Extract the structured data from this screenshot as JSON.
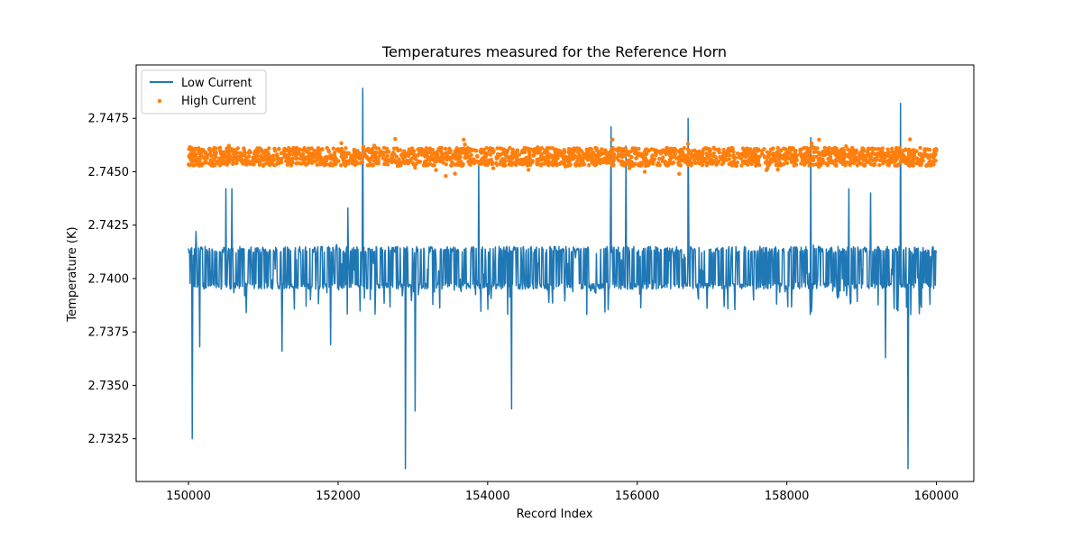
{
  "chart_data": {
    "type": "line",
    "title": "Temperatures measured for the Reference Horn",
    "xlabel": "Record Index",
    "ylabel": "Temperature (K)",
    "xlim": [
      149300,
      160500
    ],
    "ylim": [
      2.7305,
      2.75
    ],
    "xticks": [
      150000,
      152000,
      154000,
      156000,
      158000,
      160000
    ],
    "xtick_labels": [
      "150000",
      "152000",
      "154000",
      "156000",
      "158000",
      "160000"
    ],
    "yticks": [
      2.7325,
      2.735,
      2.7375,
      2.74,
      2.7425,
      2.745,
      2.7475
    ],
    "ytick_labels": [
      "2.7325",
      "2.7350",
      "2.7375",
      "2.7400",
      "2.7425",
      "2.7450",
      "2.7475"
    ],
    "legend_position": "top-left",
    "series": [
      {
        "name": "Low Current",
        "kind": "line",
        "color": "#1f77b4",
        "x_start": 150000,
        "x_end": 160000,
        "typical_range": [
          2.7395,
          2.7415
        ],
        "baseline": 2.7403,
        "noise_range": [
          2.7383,
          2.7416
        ],
        "spikes": [
          {
            "x": 150050,
            "y": 2.7325
          },
          {
            "x": 150100,
            "y": 2.7422
          },
          {
            "x": 150150,
            "y": 2.7368
          },
          {
            "x": 150500,
            "y": 2.7442
          },
          {
            "x": 150580,
            "y": 2.7442
          },
          {
            "x": 151250,
            "y": 2.7366
          },
          {
            "x": 151900,
            "y": 2.7369
          },
          {
            "x": 152130,
            "y": 2.7433
          },
          {
            "x": 152330,
            "y": 2.7489
          },
          {
            "x": 152900,
            "y": 2.7311
          },
          {
            "x": 153030,
            "y": 2.7338
          },
          {
            "x": 153880,
            "y": 2.7455
          },
          {
            "x": 154320,
            "y": 2.7339
          },
          {
            "x": 155650,
            "y": 2.7471
          },
          {
            "x": 155850,
            "y": 2.7462
          },
          {
            "x": 156680,
            "y": 2.7475
          },
          {
            "x": 158320,
            "y": 2.7466
          },
          {
            "x": 158830,
            "y": 2.7442
          },
          {
            "x": 159120,
            "y": 2.744
          },
          {
            "x": 159320,
            "y": 2.7363
          },
          {
            "x": 159520,
            "y": 2.7482
          },
          {
            "x": 159620,
            "y": 2.7311
          }
        ]
      },
      {
        "name": "High Current",
        "kind": "scatter",
        "color": "#ff7f0e",
        "x_start": 150000,
        "x_end": 160000,
        "baseline": 2.7457,
        "typical_range": [
          2.7454,
          2.746
        ],
        "outliers": [
          {
            "x": 153440,
            "y": 2.7448
          },
          {
            "x": 153680,
            "y": 2.7465
          },
          {
            "x": 156100,
            "y": 2.745
          },
          {
            "x": 156560,
            "y": 2.7449
          },
          {
            "x": 157880,
            "y": 2.7451
          },
          {
            "x": 158430,
            "y": 2.7465
          }
        ]
      }
    ]
  }
}
